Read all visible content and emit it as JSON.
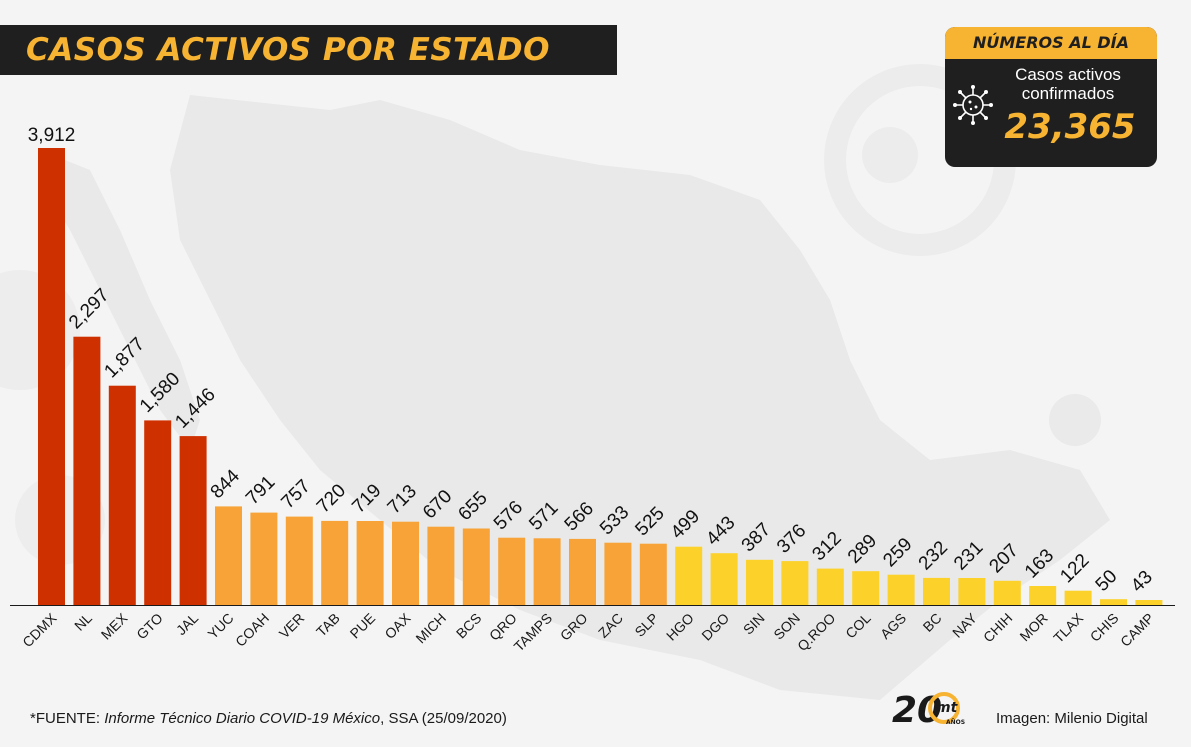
{
  "title": "CASOS ACTIVOS POR ESTADO",
  "colors": {
    "dark": "#1f1f1f",
    "accent": "#f7b332",
    "red": "#cf3000",
    "orange": "#f7a337",
    "yellow": "#fcd12a"
  },
  "summary": {
    "header": "NÚMEROS AL DÍA",
    "label_line1": "Casos activos",
    "label_line2": "confirmados",
    "value": "23,365",
    "icon": "virus-icon"
  },
  "chart_data": {
    "type": "bar",
    "title": "CASOS ACTIVOS POR ESTADO",
    "xlabel": "",
    "ylabel": "",
    "ylim": [
      0,
      3912
    ],
    "grid": false,
    "categories": [
      "CDMX",
      "NL",
      "MEX",
      "GTO",
      "JAL",
      "YUC",
      "COAH",
      "VER",
      "TAB",
      "PUE",
      "OAX",
      "MICH",
      "BCS",
      "QRO",
      "TAMPS",
      "GRO",
      "ZAC",
      "SLP",
      "HGO",
      "DGO",
      "SIN",
      "SON",
      "Q.ROO",
      "COL",
      "AGS",
      "BC",
      "NAY",
      "CHIH",
      "MOR",
      "TLAX",
      "CHIS",
      "CAMP"
    ],
    "values": [
      3912,
      2297,
      1877,
      1580,
      1446,
      844,
      791,
      757,
      720,
      719,
      713,
      670,
      655,
      576,
      571,
      566,
      533,
      525,
      499,
      443,
      387,
      376,
      312,
      289,
      259,
      232,
      231,
      207,
      163,
      122,
      50,
      43
    ],
    "value_labels": [
      "3,912",
      "2,297",
      "1,877",
      "1,580",
      "1,446",
      "844",
      "791",
      "757",
      "720",
      "719",
      "713",
      "670",
      "655",
      "576",
      "571",
      "566",
      "533",
      "525",
      "499",
      "443",
      "387",
      "376",
      "312",
      "289",
      "259",
      "232",
      "231",
      "207",
      "163",
      "122",
      "50",
      "43"
    ],
    "bar_color_groups": [
      "red",
      "red",
      "red",
      "red",
      "red",
      "orange",
      "orange",
      "orange",
      "orange",
      "orange",
      "orange",
      "orange",
      "orange",
      "orange",
      "orange",
      "orange",
      "orange",
      "orange",
      "yellow",
      "yellow",
      "yellow",
      "yellow",
      "yellow",
      "yellow",
      "yellow",
      "yellow",
      "yellow",
      "yellow",
      "yellow",
      "yellow",
      "yellow",
      "yellow"
    ]
  },
  "footer": {
    "source_prefix": "*FUENTE: ",
    "source_italic": "Informe Técnico Diario COVID-19 México",
    "source_suffix": ", SSA (25/09/2020)",
    "credit": "Imagen: Milenio Digital",
    "logo_number": "20",
    "logo_brand": "mt",
    "logo_sub": "AÑOS"
  }
}
